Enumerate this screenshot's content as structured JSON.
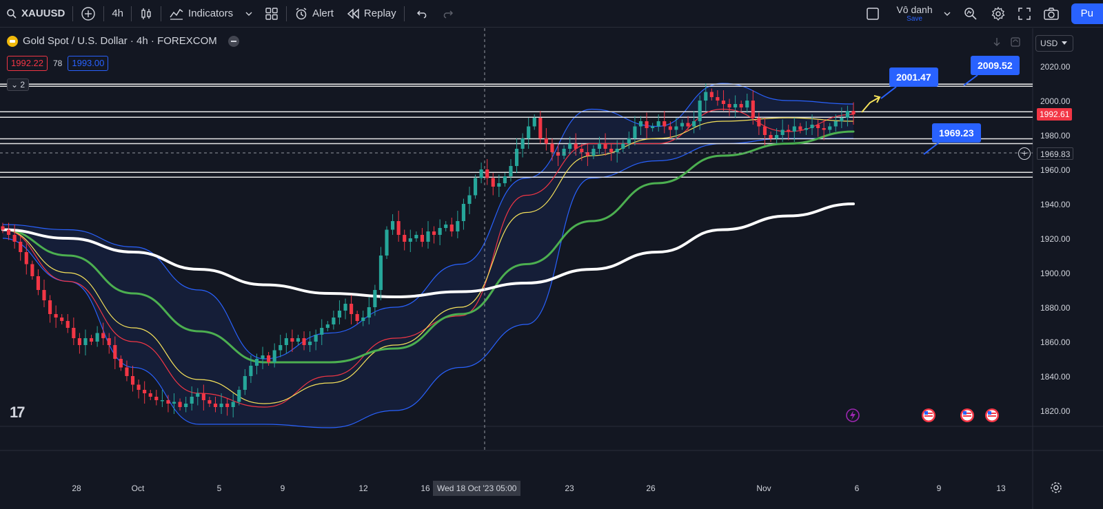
{
  "toolbar": {
    "symbol": "XAUUSD",
    "interval": "4h",
    "indicators_label": "Indicators",
    "alert_label": "Alert",
    "replay_label": "Replay",
    "account_name": "Vô danh",
    "account_sub": "Save",
    "publish_label": "Pu"
  },
  "legend": {
    "title": "Gold Spot / U.S. Dollar · 4h · FOREXCOM",
    "sell_price": "1992.22",
    "spread": "78",
    "buy_price": "1993.00",
    "indicator_count": "2"
  },
  "currency": "USD",
  "price_axis": [
    "2020.00",
    "2000.00",
    "1980.00",
    "1960.00",
    "1940.00",
    "1920.00",
    "1900.00",
    "1880.00",
    "1860.00",
    "1840.00",
    "1820.00"
  ],
  "time_axis": [
    "28",
    "Oct",
    "5",
    "9",
    "12",
    "16",
    "23",
    "26",
    "Nov",
    "6",
    "9",
    "13"
  ],
  "crosshair_time": "Wed 18 Oct '23   05:00",
  "last_price": "1992.61",
  "crosshair_price": "1969.83",
  "callouts": [
    "2001.47",
    "2009.52",
    "1969.23"
  ],
  "colors": {
    "background": "#131722",
    "up": "#26a69a",
    "down": "#f23645",
    "accent": "#2962ff",
    "ma_white": "#ffffff",
    "ma_green": "#4caf50",
    "ma_yellow": "#f7e35b",
    "ma_red": "#f23645",
    "bollinger": "#2962ff"
  },
  "chart_data": {
    "type": "candlestick",
    "symbol": "XAUUSD",
    "ylim": [
      1810,
      2028
    ],
    "x_ticks": [
      "28",
      "Oct",
      "5",
      "9",
      "12",
      "16",
      "23",
      "26",
      "Nov",
      "6",
      "9",
      "13"
    ],
    "y_ticks": [
      1820,
      1840,
      1860,
      1880,
      1900,
      1920,
      1940,
      1960,
      1980,
      2000,
      2020
    ],
    "horizontal_levels": [
      2009.52,
      2008.3,
      1993.5,
      1990.3,
      1977.8,
      1975.0,
      1958.3,
      1955.5
    ],
    "close_path": [
      1925,
      1922,
      1918,
      1912,
      1905,
      1898,
      1890,
      1884,
      1876,
      1874,
      1872,
      1868,
      1862,
      1858,
      1862,
      1860,
      1865,
      1862,
      1858,
      1850,
      1845,
      1840,
      1835,
      1832,
      1830,
      1828,
      1826,
      1826,
      1824,
      1825,
      1822,
      1824,
      1828,
      1830,
      1826,
      1824,
      1822,
      1824,
      1822,
      1825,
      1832,
      1840,
      1846,
      1850,
      1852,
      1848,
      1855,
      1858,
      1862,
      1860,
      1862,
      1858,
      1860,
      1864,
      1868,
      1870,
      1874,
      1878,
      1882,
      1876,
      1872,
      1874,
      1880,
      1890,
      1910,
      1925,
      1930,
      1922,
      1918,
      1920,
      1922,
      1918,
      1924,
      1922,
      1926,
      1928,
      1924,
      1930,
      1940,
      1945,
      1955,
      1960,
      1955,
      1950,
      1952,
      1956,
      1962,
      1972,
      1978,
      1985,
      1990,
      1978,
      1975,
      1970,
      1968,
      1972,
      1975,
      1972,
      1970,
      1968,
      1972,
      1975,
      1972,
      1970,
      1972,
      1975,
      1978,
      1985,
      1988,
      1984,
      1985,
      1988,
      1985,
      1983,
      1985,
      1987,
      1985,
      1988,
      2000,
      2005,
      2002,
      2000,
      1998,
      1996,
      1998,
      1996,
      2000,
      1990,
      1985,
      1980,
      1978,
      1980,
      1983,
      1982,
      1985,
      1983,
      1984,
      1986,
      1984,
      1983,
      1985,
      1988,
      1990,
      1994,
      1992
    ],
    "moving_averages": {
      "white_200": [
        1925,
        1920,
        1912,
        1902,
        1893,
        1888,
        1886,
        1889,
        1894,
        1902,
        1912,
        1925,
        1933,
        1940
      ],
      "green_50": [
        1925,
        1910,
        1888,
        1866,
        1848,
        1848,
        1856,
        1876,
        1905,
        1930,
        1952,
        1968,
        1975,
        1982
      ],
      "yellow_20": [
        1925,
        1900,
        1868,
        1838,
        1824,
        1836,
        1858,
        1880,
        1935,
        1968,
        1978,
        1988,
        1990,
        1988
      ],
      "red_9": [
        1925,
        1895,
        1860,
        1830,
        1822,
        1840,
        1862,
        1875,
        1945,
        1975,
        1975,
        1995,
        1982,
        1992
      ]
    },
    "bollinger": {
      "upper": [
        1928,
        1925,
        1915,
        1890,
        1850,
        1865,
        1880,
        1905,
        1955,
        1995,
        1985,
        2010,
        2000,
        1998
      ],
      "lower": [
        1920,
        1895,
        1845,
        1812,
        1812,
        1810,
        1820,
        1845,
        1870,
        1955,
        1965,
        1975,
        1978,
        1978
      ]
    },
    "annotations": [
      "2001.47",
      "2009.52",
      "1969.23"
    ]
  }
}
